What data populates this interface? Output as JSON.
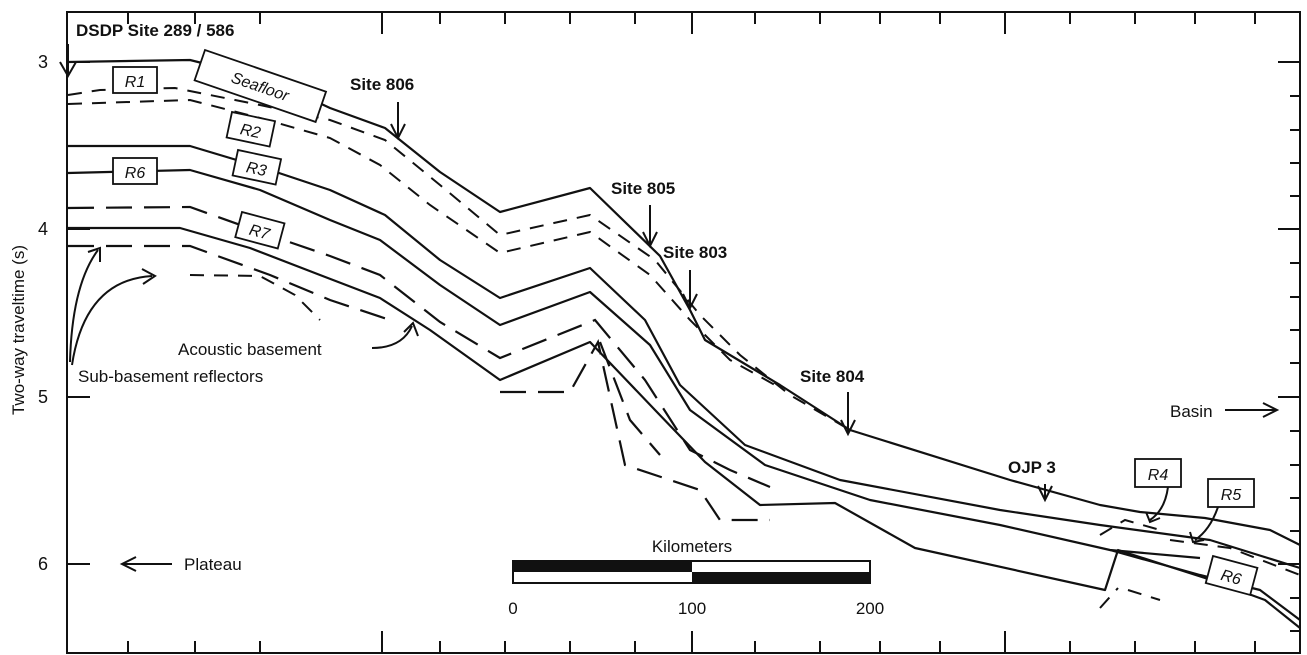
{
  "figure": {
    "y_axis_label": "Two-way traveltime (s)",
    "y_ticks": [
      "3",
      "4",
      "5",
      "6"
    ],
    "top_label": "DSDP Site 289 / 586",
    "sites": {
      "site806": "Site 806",
      "site805": "Site 805",
      "site803": "Site 803",
      "site804": "Site 804",
      "ojp3": "OJP 3"
    },
    "seafloor_label": "Seafloor",
    "reflectors": [
      "R1",
      "R2",
      "R3",
      "R6",
      "R7",
      "R4",
      "R5",
      "R6"
    ],
    "annotations": {
      "acoustic_basement": "Acoustic basement",
      "sub_basement": "Sub-basement reflectors",
      "basin": "Basin",
      "plateau": "Plateau"
    },
    "scale_bar": {
      "title": "Kilometers",
      "labels": [
        "0",
        "100",
        "200"
      ]
    }
  }
}
